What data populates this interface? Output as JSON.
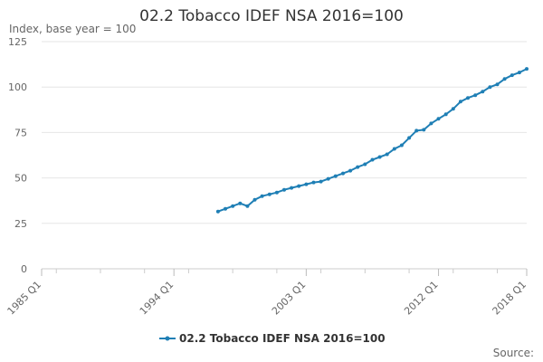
{
  "chart_data": {
    "type": "line",
    "title": "02.2 Tobacco IDEF NSA 2016=100",
    "ylabel": "Index, base year = 100",
    "ylim": [
      0,
      125
    ],
    "yticks": [
      "0",
      "25",
      "50",
      "75",
      "100",
      "125"
    ],
    "xrange": [
      "1985 Q1",
      "2018 Q1"
    ],
    "xticks": [
      "1985 Q1",
      "1994 Q1",
      "2003 Q1",
      "2012 Q1",
      "2018 Q1"
    ],
    "grid": true,
    "legend": "bottom-center",
    "series": [
      {
        "name": "02.2 Tobacco IDEF NSA 2016=100",
        "color": "#1f7fb5",
        "x": [
          "1997 Q1",
          "1997 Q3",
          "1998 Q1",
          "1998 Q3",
          "1999 Q1",
          "1999 Q3",
          "2000 Q1",
          "2000 Q3",
          "2001 Q1",
          "2001 Q3",
          "2002 Q1",
          "2002 Q3",
          "2003 Q1",
          "2003 Q3",
          "2004 Q1",
          "2004 Q3",
          "2005 Q1",
          "2005 Q3",
          "2006 Q1",
          "2006 Q3",
          "2007 Q1",
          "2007 Q3",
          "2008 Q1",
          "2008 Q3",
          "2009 Q1",
          "2009 Q3",
          "2010 Q1",
          "2010 Q3",
          "2011 Q1",
          "2011 Q3",
          "2012 Q1",
          "2012 Q3",
          "2013 Q1",
          "2013 Q3",
          "2014 Q1",
          "2014 Q3",
          "2015 Q1",
          "2015 Q3",
          "2016 Q1",
          "2016 Q3",
          "2017 Q1",
          "2017 Q3",
          "2018 Q1"
        ],
        "values": [
          31.5,
          33,
          34.5,
          36,
          34.5,
          38,
          40,
          41,
          42,
          43.5,
          44.5,
          45.5,
          46.5,
          47.5,
          48,
          49.5,
          51,
          52.5,
          54,
          56,
          57.5,
          60,
          61.5,
          63,
          66,
          68,
          72,
          76,
          76.5,
          80,
          82.5,
          85,
          88,
          92,
          94,
          95.5,
          97.5,
          100,
          101.5,
          104.5,
          106.5,
          108,
          110
        ]
      }
    ]
  },
  "footer": {
    "source": "Source:"
  }
}
